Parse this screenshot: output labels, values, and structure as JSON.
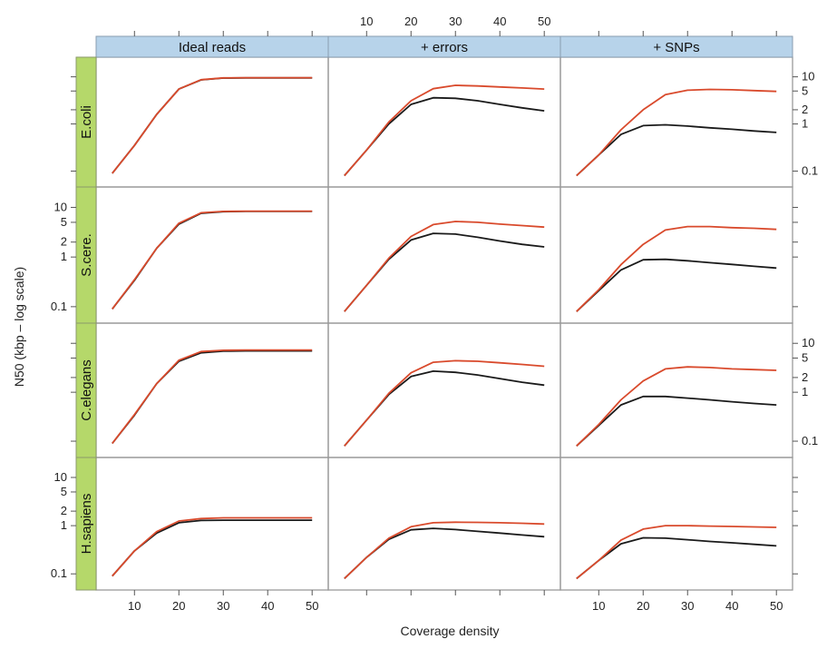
{
  "chart_data": {
    "type": "line",
    "title": "",
    "xlabel": "Coverage density",
    "ylabel": "N50 (kbp – log scale)",
    "y_scale": "log",
    "xlim": [
      3,
      52
    ],
    "ylim": [
      0.06,
      20
    ],
    "x_ticks": [
      10,
      20,
      30,
      40,
      50
    ],
    "y_ticks": [
      0.1,
      1,
      2,
      5,
      10
    ],
    "x_tick_labels": [
      "10",
      "20",
      "30",
      "40",
      "50"
    ],
    "y_tick_labels": [
      "0.1",
      "1",
      "2",
      "5",
      "10"
    ],
    "columns": [
      "Ideal reads",
      "+ errors",
      "+ SNPs"
    ],
    "rows": [
      "E.coli",
      "S.cere.",
      "C.elegans",
      "H.sapiens"
    ],
    "x": [
      5,
      10,
      15,
      20,
      25,
      30,
      35,
      40,
      45,
      50
    ],
    "series_colors": [
      "#d94a2c",
      "#1a1a1a"
    ],
    "strip_color_column": "#b7d3ea",
    "strip_color_row": "#b5d86a",
    "panels": [
      {
        "row": "E.coli",
        "column": "Ideal reads",
        "series": [
          {
            "values": [
              0.09,
              0.35,
              1.6,
              5.5,
              8.7,
              9.5,
              9.6,
              9.6,
              9.6,
              9.6
            ]
          },
          {
            "values": [
              0.09,
              0.35,
              1.6,
              5.5,
              8.6,
              9.4,
              9.5,
              9.5,
              9.5,
              9.5
            ]
          }
        ]
      },
      {
        "row": "E.coli",
        "column": "+ errors",
        "series": [
          {
            "values": [
              0.08,
              0.28,
              1.1,
              3.1,
              5.6,
              6.6,
              6.4,
              6.1,
              5.8,
              5.5
            ]
          },
          {
            "values": [
              0.08,
              0.28,
              1.0,
              2.6,
              3.6,
              3.5,
              3.1,
              2.6,
              2.2,
              1.9
            ]
          }
        ]
      },
      {
        "row": "E.coli",
        "column": "+ SNPs",
        "series": [
          {
            "values": [
              0.08,
              0.22,
              0.75,
              2.0,
              4.2,
              5.2,
              5.4,
              5.3,
              5.1,
              4.9
            ]
          },
          {
            "values": [
              0.08,
              0.22,
              0.6,
              0.92,
              0.96,
              0.9,
              0.83,
              0.77,
              0.71,
              0.66
            ]
          }
        ]
      },
      {
        "row": "S.cere.",
        "column": "Ideal reads",
        "series": [
          {
            "values": [
              0.09,
              0.35,
              1.5,
              4.8,
              7.8,
              8.3,
              8.4,
              8.4,
              8.4,
              8.4
            ]
          },
          {
            "values": [
              0.09,
              0.34,
              1.5,
              4.6,
              7.6,
              8.2,
              8.3,
              8.3,
              8.3,
              8.3
            ]
          }
        ]
      },
      {
        "row": "S.cere.",
        "column": "+ errors",
        "series": [
          {
            "values": [
              0.08,
              0.27,
              0.95,
              2.6,
              4.5,
              5.2,
              5.0,
              4.6,
              4.3,
              4.0
            ]
          },
          {
            "values": [
              0.08,
              0.27,
              0.9,
              2.2,
              3.0,
              2.9,
              2.5,
              2.1,
              1.8,
              1.6
            ]
          }
        ]
      },
      {
        "row": "S.cere.",
        "column": "+ SNPs",
        "series": [
          {
            "values": [
              0.08,
              0.22,
              0.7,
              1.8,
              3.5,
              4.1,
              4.1,
              3.9,
              3.8,
              3.6
            ]
          },
          {
            "values": [
              0.08,
              0.21,
              0.55,
              0.88,
              0.9,
              0.84,
              0.77,
              0.71,
              0.65,
              0.6
            ]
          }
        ]
      },
      {
        "row": "C.elegans",
        "column": "Ideal reads",
        "series": [
          {
            "values": [
              0.09,
              0.35,
              1.5,
              4.5,
              6.8,
              7.2,
              7.3,
              7.3,
              7.3,
              7.3
            ]
          },
          {
            "values": [
              0.09,
              0.34,
              1.5,
              4.3,
              6.4,
              6.9,
              7.0,
              7.0,
              7.0,
              7.0
            ]
          }
        ]
      },
      {
        "row": "C.elegans",
        "column": "+ errors",
        "series": [
          {
            "values": [
              0.08,
              0.27,
              0.95,
              2.5,
              4.1,
              4.4,
              4.3,
              4.0,
              3.7,
              3.4
            ]
          },
          {
            "values": [
              0.08,
              0.27,
              0.9,
              2.1,
              2.7,
              2.55,
              2.25,
              1.9,
              1.6,
              1.4
            ]
          }
        ]
      },
      {
        "row": "C.elegans",
        "column": "+ SNPs",
        "series": [
          {
            "values": [
              0.08,
              0.22,
              0.7,
              1.7,
              3.0,
              3.3,
              3.2,
              3.0,
              2.9,
              2.8
            ]
          },
          {
            "values": [
              0.08,
              0.21,
              0.55,
              0.82,
              0.82,
              0.76,
              0.7,
              0.64,
              0.59,
              0.55
            ]
          }
        ]
      },
      {
        "row": "H.sapiens",
        "column": "Ideal reads",
        "series": [
          {
            "values": [
              0.09,
              0.3,
              0.75,
              1.25,
              1.4,
              1.45,
              1.45,
              1.45,
              1.45,
              1.45
            ]
          },
          {
            "values": [
              0.09,
              0.3,
              0.7,
              1.15,
              1.28,
              1.3,
              1.3,
              1.3,
              1.3,
              1.3
            ]
          }
        ]
      },
      {
        "row": "H.sapiens",
        "column": "+ errors",
        "series": [
          {
            "values": [
              0.08,
              0.22,
              0.55,
              0.95,
              1.15,
              1.18,
              1.17,
              1.15,
              1.12,
              1.08
            ]
          },
          {
            "values": [
              0.08,
              0.22,
              0.52,
              0.82,
              0.88,
              0.83,
              0.76,
              0.7,
              0.64,
              0.59
            ]
          }
        ]
      },
      {
        "row": "H.sapiens",
        "column": "+ SNPs",
        "series": [
          {
            "values": [
              0.08,
              0.19,
              0.5,
              0.85,
              1.0,
              1.0,
              0.98,
              0.96,
              0.94,
              0.92
            ]
          },
          {
            "values": [
              0.08,
              0.19,
              0.42,
              0.56,
              0.55,
              0.51,
              0.47,
              0.44,
              0.41,
              0.38
            ]
          }
        ]
      }
    ]
  }
}
